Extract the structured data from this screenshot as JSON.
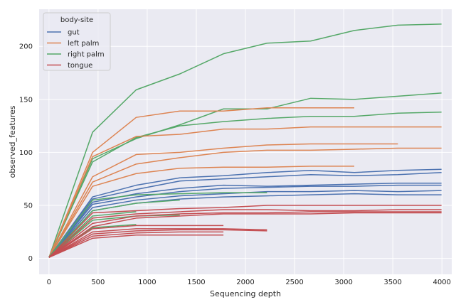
{
  "chart_data": {
    "type": "line",
    "xlabel": "Sequencing depth",
    "ylabel": "observed_features",
    "xlim": [
      -100,
      4100
    ],
    "ylim": [
      -15,
      235
    ],
    "xticks": [
      0,
      500,
      1000,
      1500,
      2000,
      2500,
      3000,
      3500,
      4000
    ],
    "yticks": [
      0,
      50,
      100,
      150,
      200
    ],
    "grid": true,
    "background": "#eaeaf2",
    "legend": {
      "title": "body-site",
      "placement": "top-left",
      "entries": [
        "gut",
        "left palm",
        "right palm",
        "tongue"
      ]
    },
    "colors": {
      "gut": "#4c72b0",
      "left palm": "#dd8452",
      "right palm": "#55a868",
      "tongue": "#c44e52"
    },
    "depths": [
      1,
      444,
      888,
      1332,
      1776,
      2220,
      2664,
      3108,
      3552,
      3996
    ],
    "series": [
      {
        "name": "right palm",
        "values": [
          1,
          119,
          159,
          174,
          193,
          203,
          205,
          215,
          220,
          221
        ]
      },
      {
        "name": "right palm",
        "values": [
          1,
          94,
          113,
          126,
          141,
          141,
          151,
          150,
          153,
          156
        ]
      },
      {
        "name": "right palm",
        "values": [
          1,
          91,
          114,
          125,
          129,
          132,
          134,
          134,
          137,
          138
        ]
      },
      {
        "name": "left palm",
        "values": [
          1,
          100,
          133,
          139,
          139,
          142,
          142,
          142
        ]
      },
      {
        "name": "left palm",
        "values": [
          1,
          96,
          115,
          117,
          122,
          122,
          124,
          124,
          124,
          124
        ]
      },
      {
        "name": "left palm",
        "values": [
          1,
          77,
          98,
          100,
          104,
          107,
          108,
          108,
          108
        ]
      },
      {
        "name": "left palm",
        "values": [
          1,
          72,
          89,
          95,
          100,
          102,
          102,
          103,
          104,
          104
        ]
      },
      {
        "name": "left palm",
        "values": [
          1,
          68,
          80,
          85,
          86,
          86,
          87,
          87
        ]
      },
      {
        "name": "gut",
        "values": [
          1,
          58,
          69,
          76,
          78,
          81,
          83,
          81,
          83,
          84
        ]
      },
      {
        "name": "gut",
        "values": [
          1,
          56,
          65,
          73,
          75,
          77,
          79,
          78,
          79,
          81
        ]
      },
      {
        "name": "gut",
        "values": [
          1,
          53,
          61,
          66,
          69,
          68,
          69,
          70,
          71,
          71
        ]
      },
      {
        "name": "gut",
        "values": [
          1,
          51,
          58,
          63,
          66,
          67,
          68,
          68,
          69,
          69
        ]
      },
      {
        "name": "gut",
        "values": [
          1,
          48,
          55,
          59,
          61,
          63,
          63,
          64,
          63,
          64
        ]
      },
      {
        "name": "gut",
        "values": [
          1,
          45,
          52,
          56,
          58,
          59,
          60,
          61,
          60,
          60
        ]
      },
      {
        "name": "right palm",
        "values": [
          1,
          55,
          60,
          61,
          62,
          62
        ]
      },
      {
        "name": "right palm",
        "values": [
          1,
          45,
          52,
          55
        ]
      },
      {
        "name": "right palm",
        "values": [
          1,
          40,
          44
        ]
      },
      {
        "name": "right palm",
        "values": [
          1,
          36,
          40,
          41
        ]
      },
      {
        "name": "right palm",
        "values": [
          1,
          29,
          32
        ]
      },
      {
        "name": "tongue",
        "values": [
          1,
          43,
          45,
          47,
          48,
          50,
          50,
          50,
          50,
          50
        ]
      },
      {
        "name": "tongue",
        "values": [
          1,
          38,
          42,
          44,
          46,
          46,
          45,
          45,
          46,
          46
        ]
      },
      {
        "name": "tongue",
        "values": [
          1,
          33,
          40,
          42,
          43,
          43,
          44,
          44,
          44,
          44
        ]
      },
      {
        "name": "tongue",
        "values": [
          1,
          30,
          38,
          40,
          42,
          42,
          42,
          43,
          43,
          43
        ]
      },
      {
        "name": "tongue",
        "values": [
          1,
          28,
          31,
          31,
          31
        ]
      },
      {
        "name": "tongue",
        "values": [
          1,
          25,
          28,
          28,
          28,
          27
        ]
      },
      {
        "name": "tongue",
        "values": [
          1,
          23,
          26,
          27,
          27,
          26
        ]
      },
      {
        "name": "tongue",
        "values": [
          1,
          21,
          24,
          25,
          25
        ]
      },
      {
        "name": "tongue",
        "values": [
          1,
          19,
          22,
          22,
          22
        ]
      }
    ]
  }
}
